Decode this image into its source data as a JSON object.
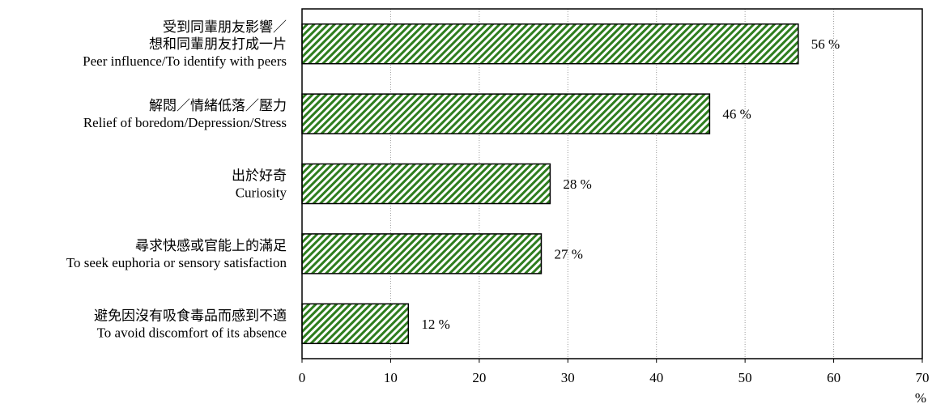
{
  "chart_data": {
    "type": "bar",
    "orientation": "horizontal",
    "categories": [
      [
        "受到同輩朋友影響／",
        "想和同輩朋友打成一片",
        "Peer influence/To identify with peers"
      ],
      [
        "解悶／情緒低落／壓力",
        "Relief of boredom/Depression/Stress"
      ],
      [
        "出於好奇",
        "Curiosity"
      ],
      [
        "尋求快感或官能上的滿足",
        "To seek euphoria or sensory satisfaction"
      ],
      [
        "避免因沒有吸食毒品而感到不適",
        "To avoid discomfort of its absence"
      ]
    ],
    "values": [
      56,
      46,
      28,
      27,
      12
    ],
    "value_labels": [
      "56 %",
      "46 %",
      "28 %",
      "27 %",
      "12 %"
    ],
    "xlim": [
      0,
      70
    ],
    "x_ticks": [
      "0",
      "10",
      "20",
      "30",
      "40",
      "50",
      "60",
      "70"
    ],
    "x_unit": "%",
    "grid": "vertical dotted",
    "bar_fill": "green diagonal hatch",
    "colors": {
      "hatch": "#2e7d1e",
      "bar_bg": "#ffffff",
      "outline": "#000000",
      "grid": "#9a9a9a"
    }
  }
}
